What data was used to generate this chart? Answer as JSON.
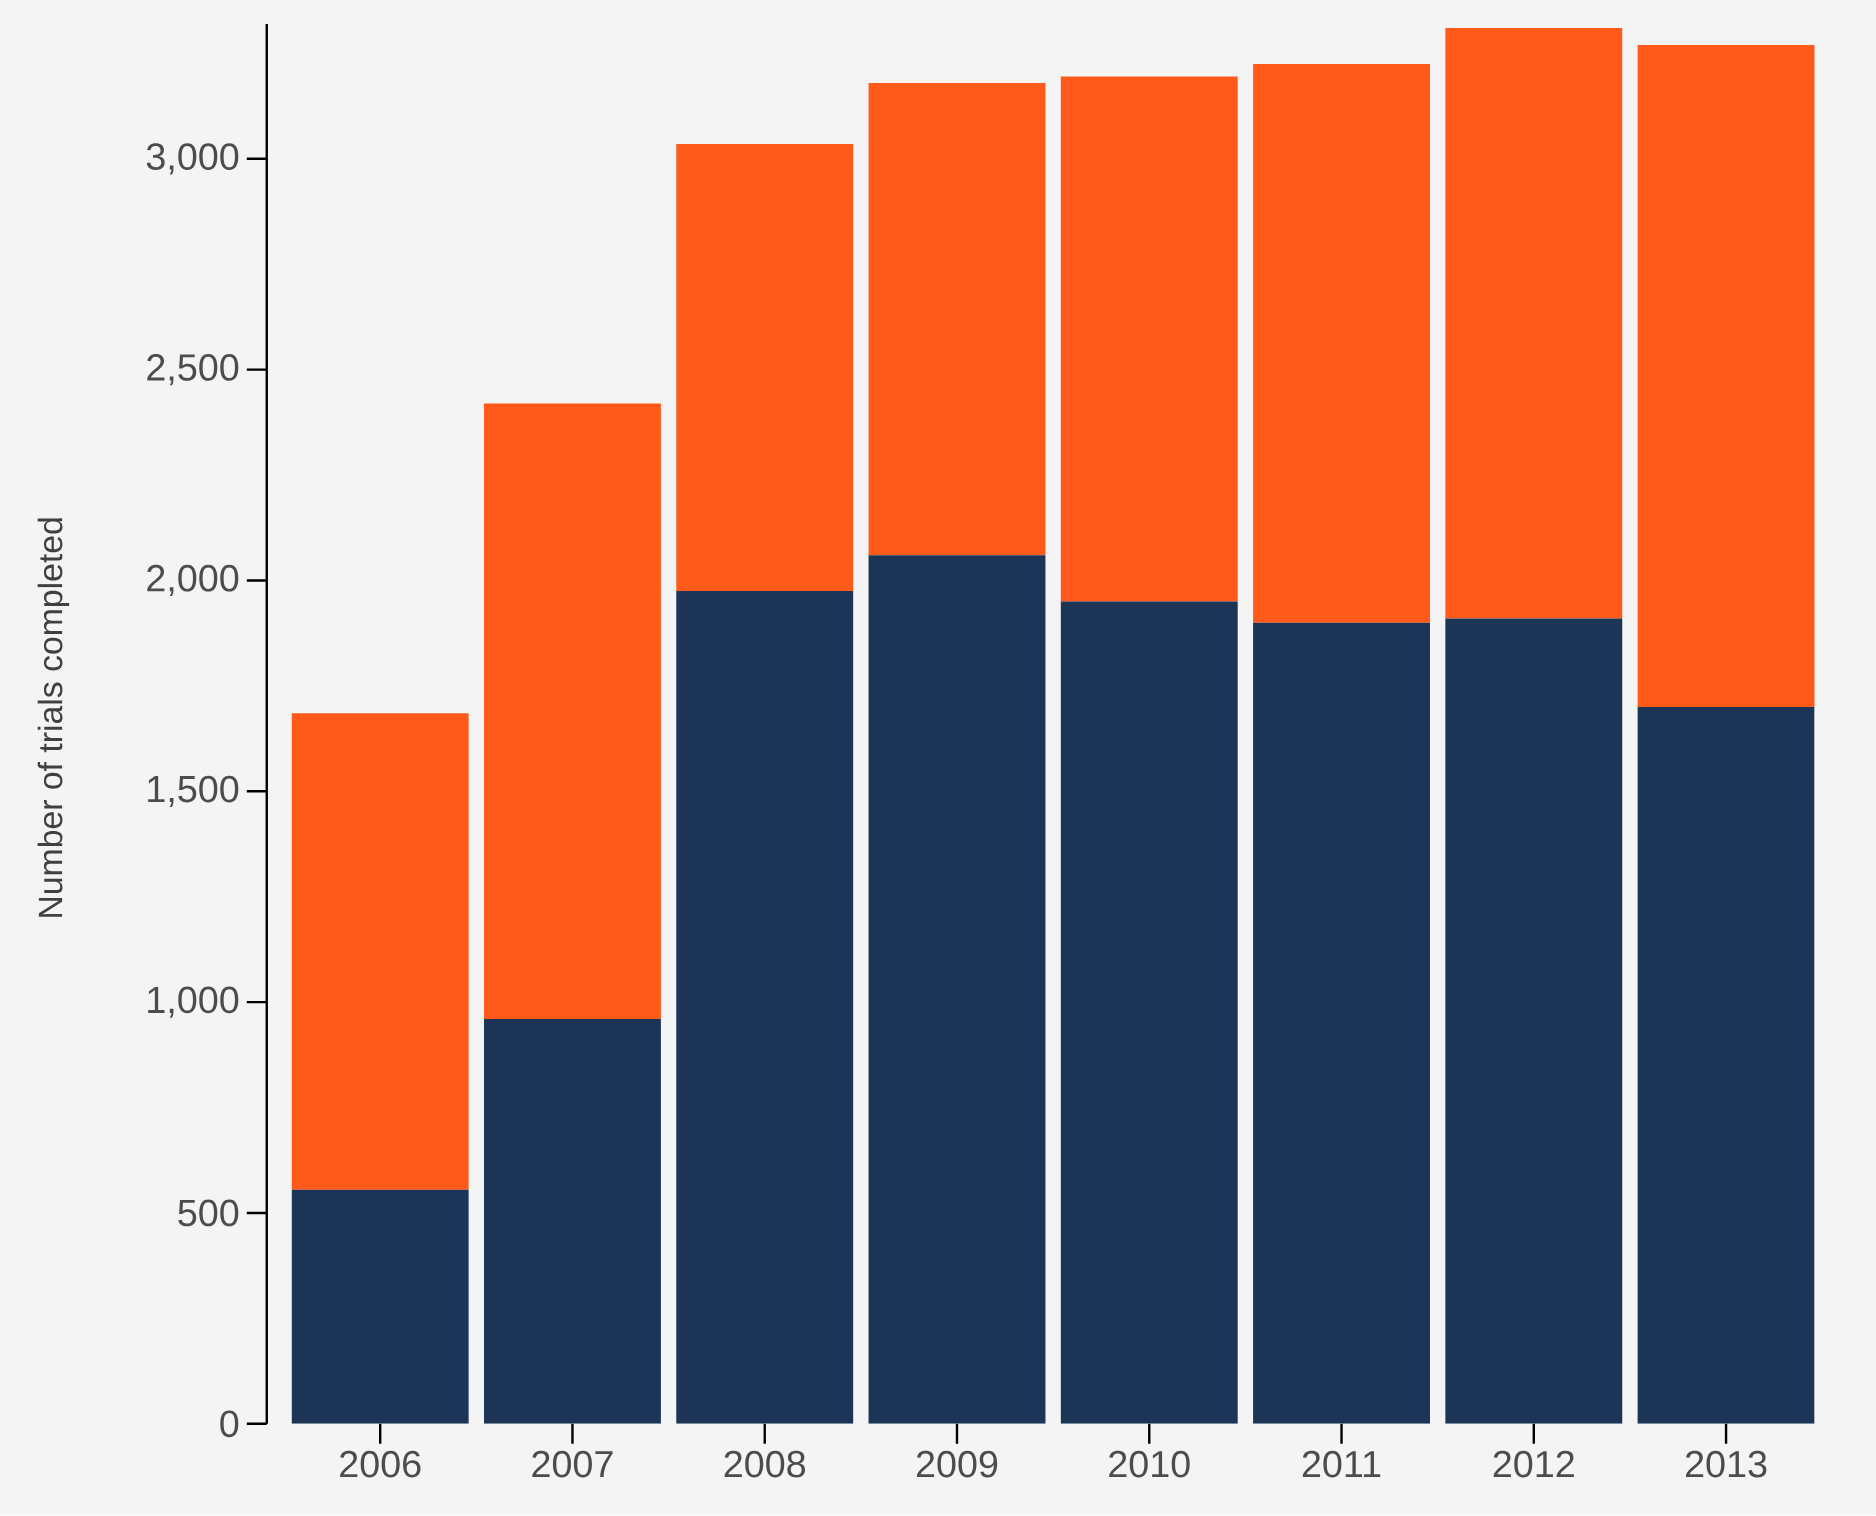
{
  "chart_data": {
    "type": "bar",
    "stacked": true,
    "ylabel": "Number of trials completed",
    "categories": [
      "2006",
      "2007",
      "2008",
      "2009",
      "2010",
      "2011",
      "2012",
      "2013"
    ],
    "series": [
      {
        "color": "#1c3557",
        "values": [
          555,
          960,
          1975,
          2060,
          1950,
          1900,
          1910,
          1700
        ]
      },
      {
        "color": "#ff5a1a",
        "values": [
          1130,
          1460,
          1060,
          1120,
          1245,
          1325,
          1400,
          1570
        ]
      }
    ],
    "ylim": [
      0,
      3320
    ],
    "yticks": [
      0,
      500,
      {
        "value": 1000,
        "label": "1,000"
      },
      {
        "value": 1500,
        "label": "1,500"
      },
      {
        "value": 2000,
        "label": "2,000"
      },
      {
        "value": 2500,
        "label": "2,500"
      },
      {
        "value": 3000,
        "label": "3,000"
      }
    ],
    "grid": false
  }
}
